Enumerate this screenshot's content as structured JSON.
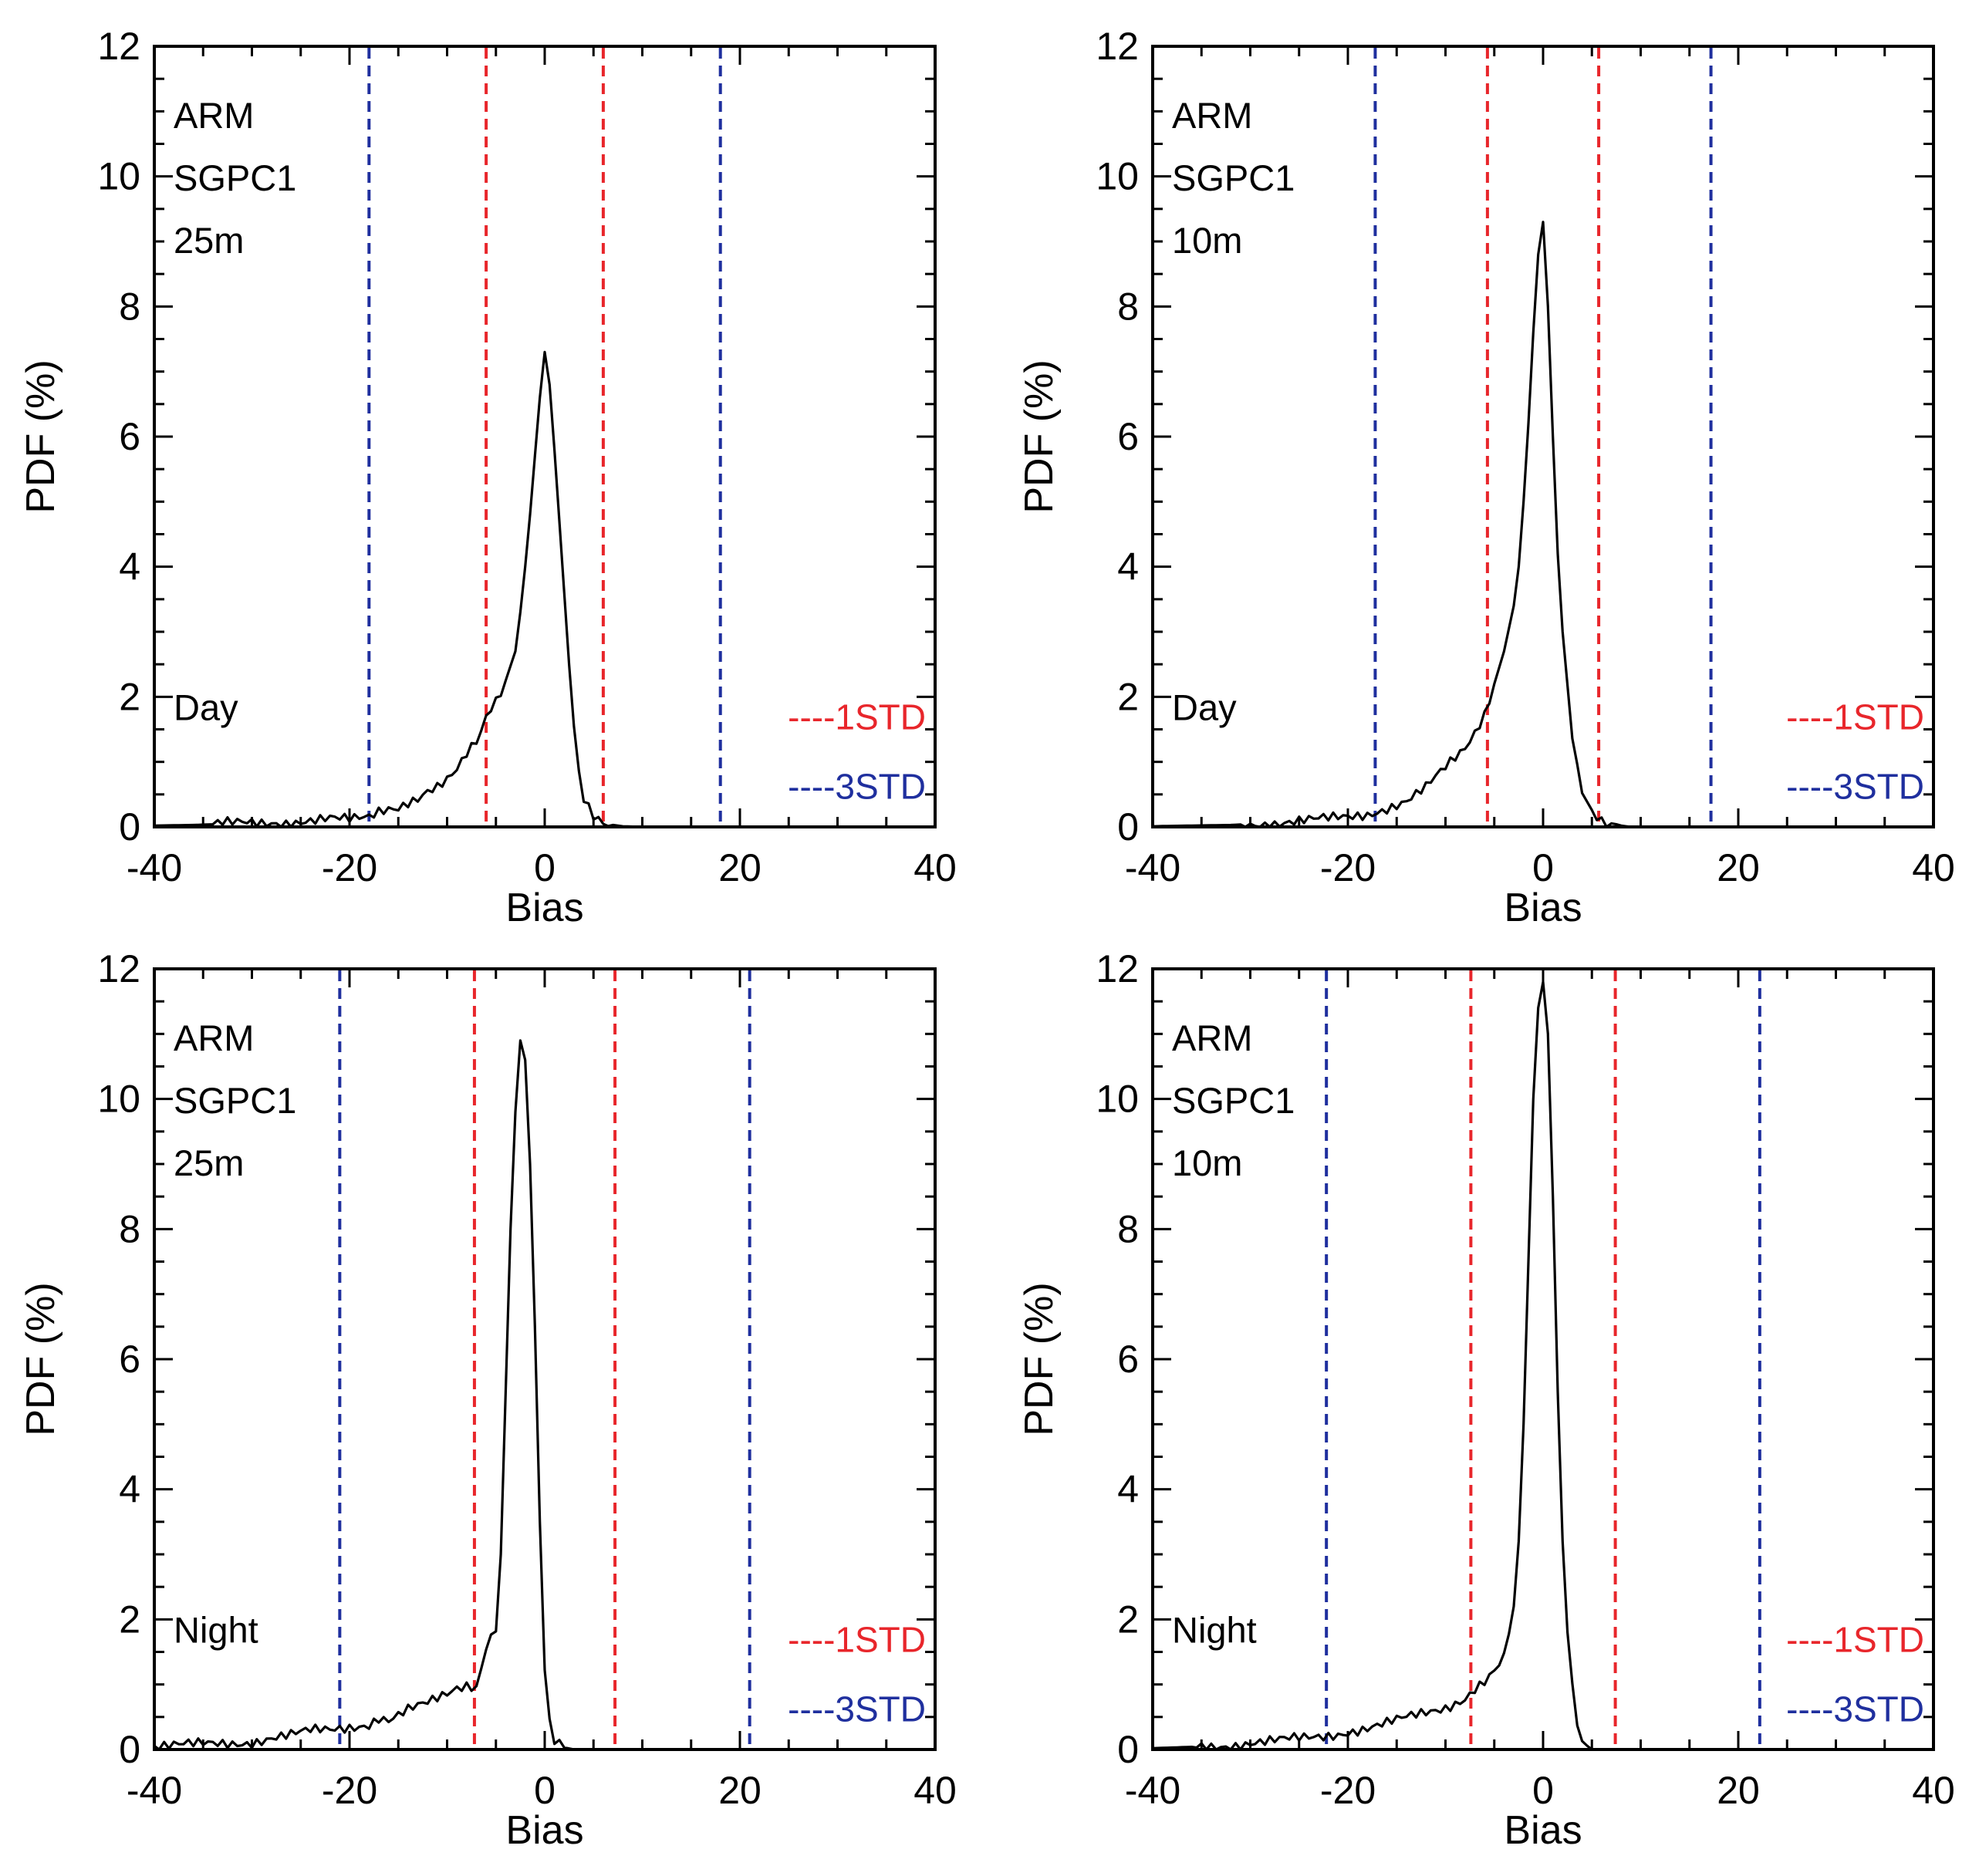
{
  "figure": {
    "description_panels": 4,
    "colors": {
      "curve": "#000000",
      "one_std": "#e8262b",
      "three_std": "#1f2f9e",
      "frame": "#000000",
      "background": "#ffffff"
    }
  },
  "chart_data": [
    {
      "type": "line",
      "panel": "top-left",
      "xlabel": "Bias",
      "ylabel": "PDF (%)",
      "xlim": [
        -40,
        40
      ],
      "ylim": [
        0,
        12
      ],
      "xticks": [
        "-40",
        "-20",
        "0",
        "20",
        "40"
      ],
      "yticks": [
        "0",
        "2",
        "4",
        "6",
        "8",
        "10",
        "12"
      ],
      "annotations": [
        "ARM",
        "SGPC1",
        "25m"
      ],
      "period_label": "Day",
      "legend": [
        "----1STD",
        "----3STD"
      ],
      "std_lines": {
        "one_std": [
          -6,
          6
        ],
        "three_std": [
          -18,
          18
        ]
      },
      "series": [
        {
          "name": "PDF",
          "x": [
            -40,
            -36,
            -32,
            -28,
            -26,
            -24,
            -22,
            -20,
            -18,
            -17,
            -16,
            -15,
            -14,
            -13,
            -12,
            -11,
            -10,
            -9,
            -8,
            -7,
            -6.5,
            -6,
            -5,
            -4,
            -3,
            -2.5,
            -2,
            -1.5,
            -1,
            -0.5,
            0,
            0.5,
            1,
            1.5,
            2,
            2.5,
            3,
            3.5,
            4,
            5,
            6,
            7,
            8,
            10,
            12
          ],
          "y": [
            0.02,
            0.03,
            0.05,
            0.07,
            0.08,
            0.1,
            0.12,
            0.1,
            0.15,
            0.25,
            0.3,
            0.32,
            0.4,
            0.45,
            0.55,
            0.6,
            0.7,
            0.85,
            1.1,
            1.3,
            1.45,
            1.7,
            1.95,
            2.25,
            2.7,
            3.3,
            4.0,
            4.8,
            5.7,
            6.6,
            7.3,
            6.8,
            5.8,
            4.7,
            3.6,
            2.5,
            1.5,
            0.8,
            0.4,
            0.15,
            0.06,
            0.03,
            0.01,
            0.0,
            0.0
          ]
        }
      ]
    },
    {
      "type": "line",
      "panel": "top-right",
      "xlabel": "Bias",
      "ylabel": "PDF (%)",
      "xlim": [
        -40,
        40
      ],
      "ylim": [
        0,
        12
      ],
      "xticks": [
        "-40",
        "-20",
        "0",
        "20",
        "40"
      ],
      "yticks": [
        "0",
        "2",
        "4",
        "6",
        "8",
        "10",
        "12"
      ],
      "annotations": [
        "ARM",
        "SGPC1",
        "10m"
      ],
      "period_label": "Day",
      "legend": [
        "----1STD",
        "----3STD"
      ],
      "std_lines": {
        "one_std": [
          -5.7,
          5.7
        ],
        "three_std": [
          -17.2,
          17.2
        ]
      },
      "series": [
        {
          "name": "PDF",
          "x": [
            -40,
            -36,
            -32,
            -28,
            -26,
            -24,
            -22,
            -20,
            -18,
            -17,
            -16,
            -14,
            -12,
            -10,
            -8,
            -7,
            -6,
            -5,
            -4,
            -3,
            -2.5,
            -2,
            -1.5,
            -1,
            -0.5,
            0,
            0.5,
            1,
            1.5,
            2,
            2.5,
            3,
            3.5,
            4,
            5,
            6,
            7,
            8,
            9,
            10
          ],
          "y": [
            0.01,
            0.02,
            0.03,
            0.06,
            0.08,
            0.1,
            0.12,
            0.15,
            0.2,
            0.25,
            0.3,
            0.4,
            0.6,
            0.9,
            1.2,
            1.45,
            1.75,
            2.2,
            2.7,
            3.4,
            4.0,
            5.0,
            6.2,
            7.6,
            8.8,
            9.3,
            8.0,
            6.0,
            4.2,
            3.0,
            2.1,
            1.4,
            0.9,
            0.55,
            0.25,
            0.12,
            0.06,
            0.02,
            0.0,
            0.0
          ]
        }
      ]
    },
    {
      "type": "line",
      "panel": "bottom-left",
      "xlabel": "Bias",
      "ylabel": "PDF (%)",
      "xlim": [
        -40,
        40
      ],
      "ylim": [
        0,
        12
      ],
      "xticks": [
        "-40",
        "-20",
        "0",
        "20",
        "40"
      ],
      "yticks": [
        "0",
        "2",
        "4",
        "6",
        "8",
        "10",
        "12"
      ],
      "annotations": [
        "ARM",
        "SGPC1",
        "25m"
      ],
      "period_label": "Night",
      "legend": [
        "----1STD",
        "----3STD"
      ],
      "std_lines": {
        "one_std": [
          -7.2,
          7.2
        ],
        "three_std": [
          -21,
          21
        ]
      },
      "series": [
        {
          "name": "PDF",
          "x": [
            -40,
            -36,
            -32,
            -30,
            -28,
            -26,
            -24,
            -22,
            -20,
            -18,
            -17,
            -16,
            -14,
            -12,
            -10,
            -9,
            -8,
            -7,
            -6,
            -5,
            -4.5,
            -4,
            -3.5,
            -3,
            -2.5,
            -2,
            -1.5,
            -1,
            -0.5,
            0,
            0.5,
            1,
            2,
            3
          ],
          "y": [
            0.05,
            0.07,
            0.1,
            0.12,
            0.18,
            0.22,
            0.28,
            0.3,
            0.35,
            0.4,
            0.5,
            0.45,
            0.6,
            0.7,
            0.85,
            0.95,
            1.0,
            0.98,
            1.6,
            1.9,
            3.0,
            5.5,
            8.0,
            9.8,
            10.9,
            10.6,
            9.0,
            6.5,
            3.5,
            1.2,
            0.4,
            0.12,
            0.03,
            0.0
          ]
        }
      ]
    },
    {
      "type": "line",
      "panel": "bottom-right",
      "xlabel": "Bias",
      "ylabel": "PDF (%)",
      "xlim": [
        -40,
        40
      ],
      "ylim": [
        0,
        12
      ],
      "xticks": [
        "-40",
        "-20",
        "0",
        "20",
        "40"
      ],
      "yticks": [
        "0",
        "2",
        "4",
        "6",
        "8",
        "10",
        "12"
      ],
      "annotations": [
        "ARM",
        "SGPC1",
        "10m"
      ],
      "period_label": "Night",
      "legend": [
        "----1STD",
        "----3STD"
      ],
      "std_lines": {
        "one_std": [
          -7.4,
          7.4
        ],
        "three_std": [
          -22.2,
          22.2
        ]
      },
      "series": [
        {
          "name": "PDF",
          "x": [
            -40,
            -36,
            -32,
            -30,
            -28,
            -26,
            -24,
            -22,
            -20,
            -18,
            -16,
            -14,
            -12,
            -10,
            -8,
            -7,
            -6,
            -5,
            -4,
            -3,
            -2.5,
            -2,
            -1.5,
            -1,
            -0.5,
            0,
            0.5,
            1,
            1.5,
            2,
            2.5,
            3,
            3.5,
            4,
            5
          ],
          "y": [
            0.02,
            0.04,
            0.07,
            0.1,
            0.12,
            0.15,
            0.18,
            0.22,
            0.28,
            0.33,
            0.4,
            0.48,
            0.56,
            0.65,
            0.8,
            0.95,
            1.05,
            1.2,
            1.4,
            2.2,
            3.2,
            5.0,
            7.5,
            10.0,
            11.4,
            11.8,
            11.0,
            8.5,
            5.5,
            3.2,
            1.9,
            1.0,
            0.45,
            0.15,
            0.0
          ]
        }
      ]
    }
  ]
}
